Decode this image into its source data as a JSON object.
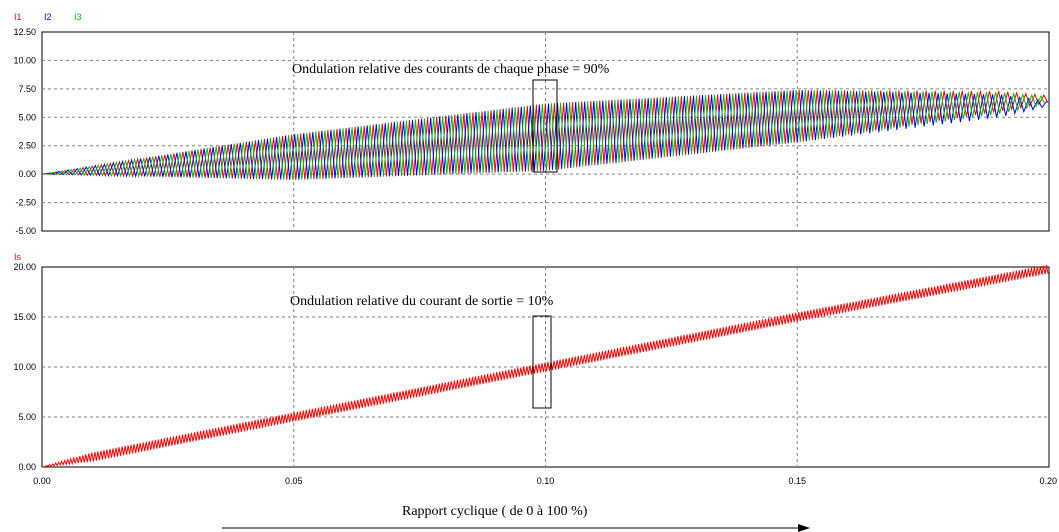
{
  "chart_data": [
    {
      "type": "line",
      "legend": [
        {
          "name": "I1",
          "color": "#ff0000"
        },
        {
          "name": "I2",
          "color": "#0000ff"
        },
        {
          "name": "I3",
          "color": "#00c000"
        }
      ],
      "x_range": [
        0,
        0.2
      ],
      "ylim": [
        -5,
        12.5
      ],
      "y_ticks": [
        "12.50",
        "10.00",
        "7.50",
        "5.00",
        "2.50",
        "0.00",
        "-2.50",
        "-5.00"
      ],
      "grid": true,
      "annotation": "Ondulation relative des courants de chaque phase = 90%",
      "series": [
        {
          "name": "I1",
          "color": "#ff0000",
          "envelope_x": [
            0,
            0.05,
            0.1,
            0.15,
            0.19,
            0.2
          ],
          "max": [
            0,
            3.5,
            6.2,
            7.4,
            7.3,
            6.9
          ],
          "min": [
            0,
            -0.5,
            0.3,
            2.8,
            5.5,
            6.3
          ]
        },
        {
          "name": "I2",
          "color": "#0000ff",
          "envelope_x": [
            0,
            0.05,
            0.1,
            0.15,
            0.19,
            0.2
          ],
          "max": [
            0,
            3.5,
            6.2,
            7.4,
            7.0,
            6.4
          ],
          "min": [
            0,
            -0.5,
            0.3,
            2.8,
            5.0,
            6.0
          ]
        },
        {
          "name": "I3",
          "color": "#00c000",
          "envelope_x": [
            0,
            0.05,
            0.1,
            0.15,
            0.19,
            0.2
          ],
          "max": [
            0,
            3.5,
            6.2,
            7.4,
            7.2,
            6.8
          ],
          "min": [
            0,
            -0.5,
            0.3,
            2.8,
            5.3,
            6.2
          ]
        }
      ]
    },
    {
      "type": "line",
      "legend": [
        {
          "name": "Is",
          "color": "#ff0000"
        }
      ],
      "x_range": [
        0,
        0.2
      ],
      "ylim": [
        0,
        20
      ],
      "y_ticks": [
        "20.00",
        "15.00",
        "10.00",
        "5.00",
        "0.00"
      ],
      "x_ticks": [
        "0.00",
        "0.05",
        "0.10",
        "0.15",
        "0.20"
      ],
      "grid": true,
      "annotation": "Ondulation relative du courant de sortie = 10%",
      "series": [
        {
          "name": "Is",
          "color": "#ff0000",
          "envelope_x": [
            0,
            0.05,
            0.1,
            0.15,
            0.2
          ],
          "mean": [
            0,
            5.0,
            10.0,
            15.0,
            19.8
          ],
          "ripple": 0.9
        }
      ]
    }
  ],
  "xlabel": "Rapport cyclique ( de 0  à 100 %)"
}
